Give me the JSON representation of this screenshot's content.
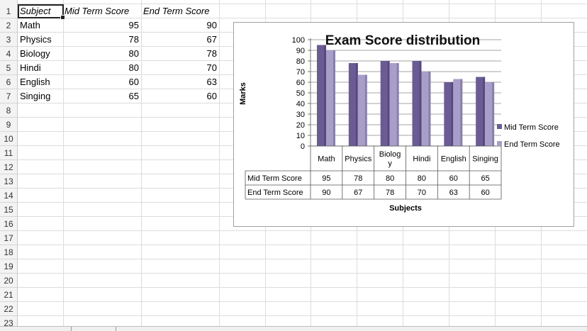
{
  "sheet": {
    "rows": [
      "1",
      "2",
      "3",
      "4",
      "5",
      "6",
      "7",
      "8",
      "9",
      "10",
      "11",
      "12",
      "13",
      "14",
      "15",
      "16",
      "17",
      "18",
      "19",
      "20",
      "21",
      "22",
      "23"
    ],
    "headers": [
      "Subject",
      "Mid Term Score",
      "End Term Score"
    ],
    "data": [
      {
        "subject": "Math",
        "mid": "95",
        "end": "90"
      },
      {
        "subject": "Physics",
        "mid": "78",
        "end": "67"
      },
      {
        "subject": "Biology",
        "mid": "80",
        "end": "78"
      },
      {
        "subject": "Hindi",
        "mid": "80",
        "end": "70"
      },
      {
        "subject": "English",
        "mid": "60",
        "end": "63"
      },
      {
        "subject": "Singing",
        "mid": "65",
        "end": "60"
      }
    ]
  },
  "chart_data": {
    "type": "bar",
    "title": "Exam Score distribution",
    "xlabel": "Subjects",
    "ylabel": "Marks",
    "categories": [
      "Math",
      "Physics",
      "Biology",
      "Hindi",
      "English",
      "Singing"
    ],
    "category_labels": [
      [
        "Math"
      ],
      [
        "Physics"
      ],
      [
        "Biolog",
        "y"
      ],
      [
        "Hindi"
      ],
      [
        "English"
      ],
      [
        "Singing"
      ]
    ],
    "series": [
      {
        "name": "Mid Term Score",
        "values": [
          95,
          78,
          80,
          80,
          60,
          65
        ],
        "color": "#6b5b95"
      },
      {
        "name": "End Term Score",
        "values": [
          90,
          67,
          78,
          70,
          63,
          60
        ],
        "color": "#a89ec9"
      }
    ],
    "ylim": [
      0,
      100
    ],
    "yticks": [
      0,
      10,
      20,
      30,
      40,
      50,
      60,
      70,
      80,
      90,
      100
    ],
    "legend_position": "right",
    "grid": true,
    "data_table": true
  },
  "colors": {
    "mid": "#6b5b95",
    "end": "#a89ec9"
  }
}
